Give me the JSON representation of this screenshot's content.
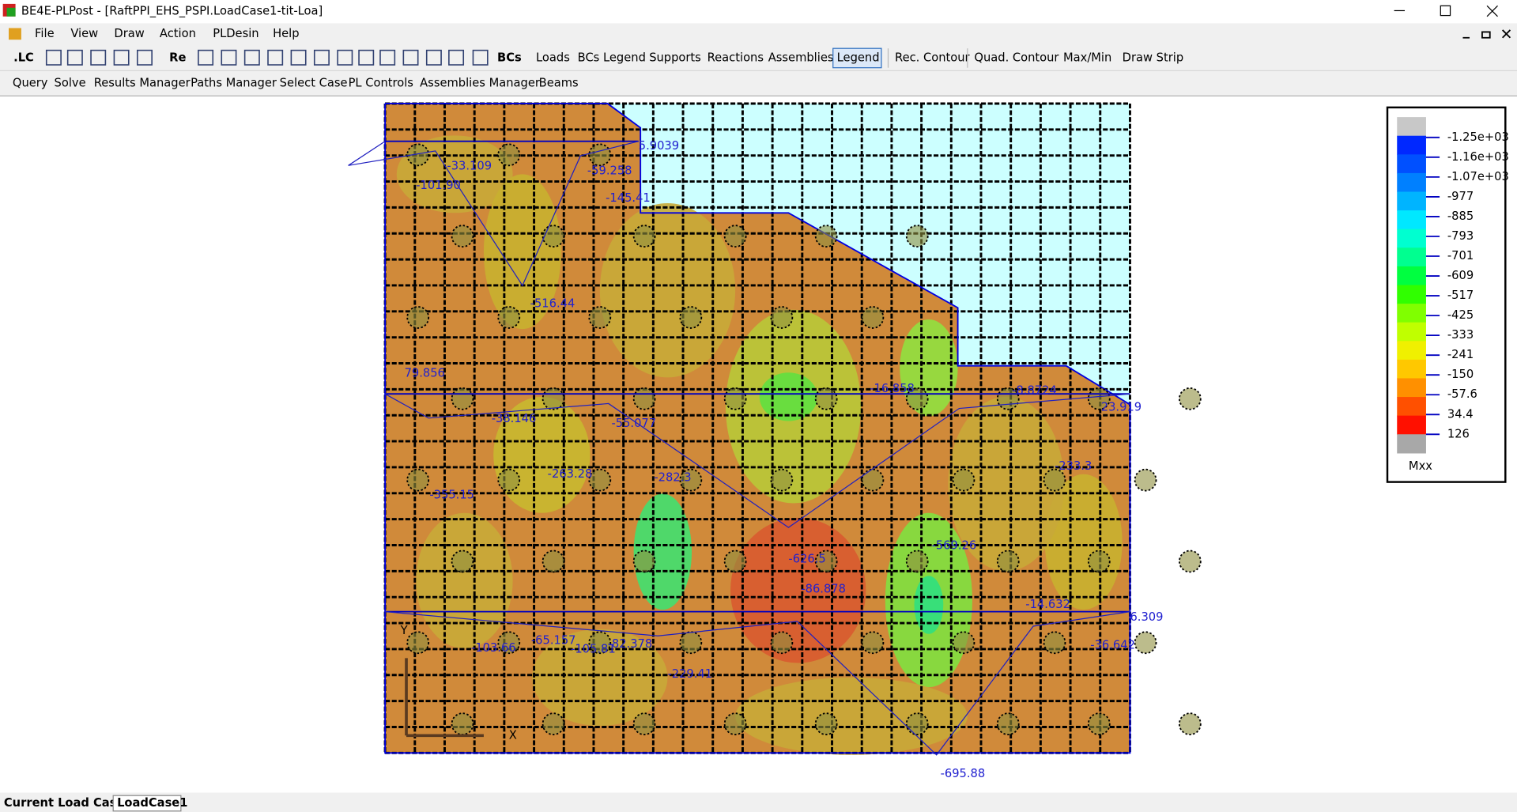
{
  "window": {
    "title": "BE4E-PLPost - [RaftPPI_EHS_PSPI.LoadCase1-tit-Loa]"
  },
  "menu": [
    "File",
    "View",
    "Draw",
    "Action",
    "PLDesin",
    "Help"
  ],
  "toolbar1": [
    ".LC",
    "Re",
    "BCs",
    "Loads",
    "BCs Legend",
    "Supports",
    "Reactions",
    "Assemblies",
    "Legend",
    "Rec. Contour",
    "Quad. Contour",
    "Max/Min",
    "Draw Strip"
  ],
  "toolbar2": [
    "Query",
    "Solve",
    "Results Manager",
    "Paths Manager",
    "Select Case",
    "PL Controls",
    "Assemblies Manager",
    "Beams"
  ],
  "plot": {
    "axis_x": "X",
    "axis_y": "Y",
    "labels": [
      "5.9039",
      "-33.109",
      "-101.90",
      "-59.258",
      "-145.41",
      "-516.44",
      "79.856",
      "-38.146",
      "-55.077",
      "-16.858",
      "-8.8724",
      "23.919",
      "-355.15",
      "-263.28",
      "-282.3",
      "-626.5",
      "-569.26",
      "-233.3",
      "-86.878",
      "-14.632",
      "6.309",
      "-103.66",
      "-65.157",
      "-105.81",
      "-82.378",
      "-229.41",
      "-36.642",
      "-695.88"
    ]
  },
  "legend": {
    "title": "Mxx",
    "labels": [
      "-1.25e+03",
      "-1.16e+03",
      "-1.07e+03",
      "-977",
      "-885",
      "-793",
      "-701",
      "-609",
      "-517",
      "-425",
      "-333",
      "-241",
      "-150",
      "-57.6",
      "34.4",
      "126"
    ],
    "colors": [
      "#c8c8c8",
      "#0028ff",
      "#0050ff",
      "#0080ff",
      "#00b4ff",
      "#00e8ff",
      "#00ffd0",
      "#00ff90",
      "#00ff40",
      "#30ff00",
      "#80ff00",
      "#c0ff00",
      "#f0f000",
      "#ffc800",
      "#ff9000",
      "#ff5000",
      "#ff1000",
      "#a8a8a8"
    ]
  },
  "status": {
    "label": "Current Load Case:",
    "value": "LoadCase1"
  }
}
